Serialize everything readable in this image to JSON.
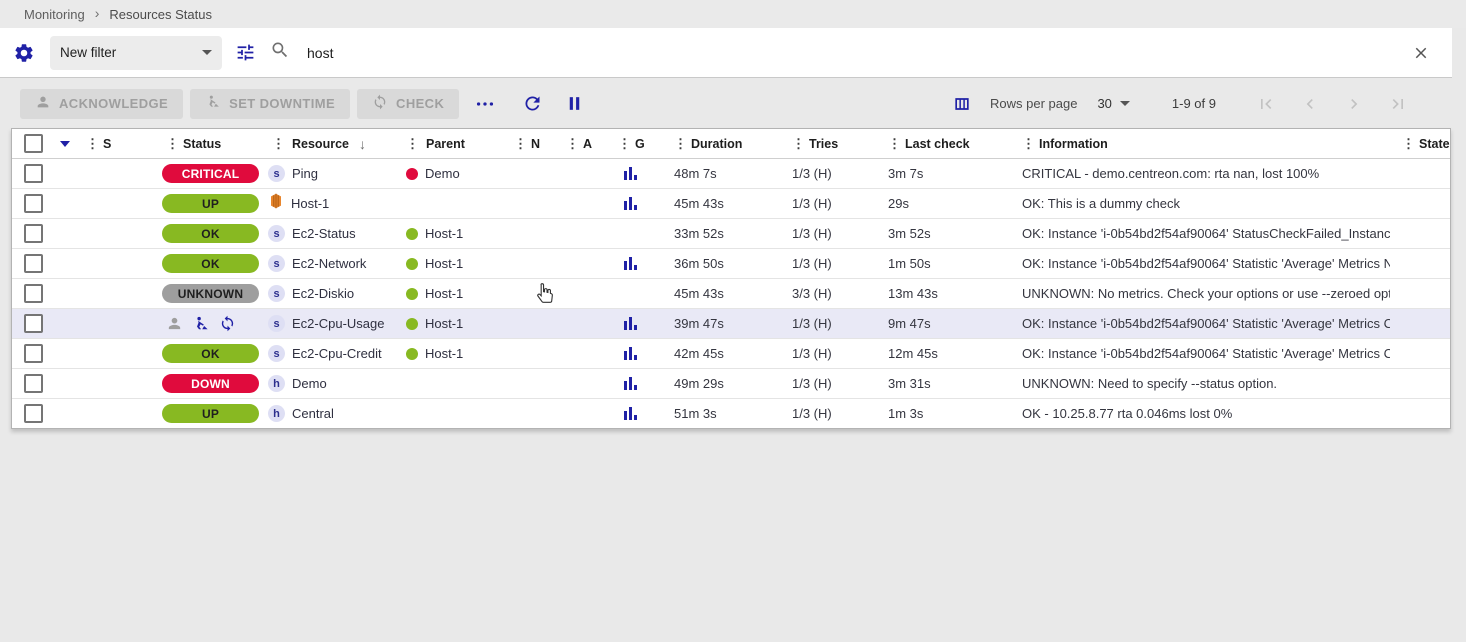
{
  "colors": {
    "primary": "#2021a6",
    "status_critical": "#e00b3d",
    "status_ok": "#88b922",
    "status_unknown": "#9e9e9e",
    "row_highlight": "#e9e9f6",
    "parent_red": "#e00b3d",
    "parent_green": "#88b922",
    "aws_orange": "#e8862d"
  },
  "breadcrumb": {
    "section": "Monitoring",
    "page": "Resources Status"
  },
  "filter": {
    "preset_label": "New filter",
    "search_value": "host"
  },
  "toolbar": {
    "acknowledge_label": "ACKNOWLEDGE",
    "set_downtime_label": "SET DOWNTIME",
    "check_label": "CHECK"
  },
  "pagination": {
    "rows_per_page_label": "Rows per page",
    "rows_per_page_value": "30",
    "range_label": "1-9 of 9"
  },
  "table": {
    "columns": [
      {
        "key": "s",
        "label": "S"
      },
      {
        "key": "status",
        "label": "Status"
      },
      {
        "key": "resource",
        "label": "Resource",
        "sorted": "desc"
      },
      {
        "key": "parent",
        "label": "Parent"
      },
      {
        "key": "n",
        "label": "N"
      },
      {
        "key": "a",
        "label": "A"
      },
      {
        "key": "g",
        "label": "G"
      },
      {
        "key": "duration",
        "label": "Duration"
      },
      {
        "key": "tries",
        "label": "Tries"
      },
      {
        "key": "last_check",
        "label": "Last check"
      },
      {
        "key": "information",
        "label": "Information"
      },
      {
        "key": "state",
        "label": "State"
      }
    ],
    "status_styles": {
      "CRITICAL": {
        "bg": "#e00b3d",
        "fg": "#ffffff"
      },
      "DOWN": {
        "bg": "#e00b3d",
        "fg": "#ffffff"
      },
      "UP": {
        "bg": "#88b922",
        "fg": "#1f1f1f"
      },
      "OK": {
        "bg": "#88b922",
        "fg": "#1f1f1f"
      },
      "UNKNOWN": {
        "bg": "#9e9e9e",
        "fg": "#1f1f1f"
      }
    },
    "rows": [
      {
        "status": "CRITICAL",
        "icon": "s",
        "resource": "Ping",
        "parent": {
          "name": "Demo",
          "color": "#e00b3d"
        },
        "graph": true,
        "duration": "48m 7s",
        "tries": "1/3 (H)",
        "last_check": "3m 7s",
        "information": "CRITICAL - demo.centreon.com: rta nan, lost 100%"
      },
      {
        "status": "UP",
        "icon": "aws",
        "resource": "Host-1",
        "parent": null,
        "graph": true,
        "duration": "45m 43s",
        "tries": "1/3 (H)",
        "last_check": "29s",
        "information": "OK: This is a dummy check"
      },
      {
        "status": "OK",
        "icon": "s",
        "resource": "Ec2-Status",
        "parent": {
          "name": "Host-1",
          "color": "#88b922"
        },
        "graph": false,
        "duration": "33m 52s",
        "tries": "1/3 (H)",
        "last_check": "3m 52s",
        "information": "OK: Instance 'i-0b54bd2f54af90064' StatusCheckFailed_Instanc…"
      },
      {
        "status": "OK",
        "icon": "s",
        "resource": "Ec2-Network",
        "parent": {
          "name": "Host-1",
          "color": "#88b922"
        },
        "graph": true,
        "duration": "36m 50s",
        "tries": "1/3 (H)",
        "last_check": "1m 50s",
        "information": "OK: Instance 'i-0b54bd2f54af90064' Statistic 'Average' Metrics N…"
      },
      {
        "status": "UNKNOWN",
        "icon": "s",
        "resource": "Ec2-Diskio",
        "parent": {
          "name": "Host-1",
          "color": "#88b922"
        },
        "graph": false,
        "duration": "45m 43s",
        "tries": "3/3 (H)",
        "last_check": "13m 43s",
        "information": "UNKNOWN: No metrics. Check your options or use --zeroed opti…"
      },
      {
        "status": null,
        "actions": [
          "acknowledge",
          "set-downtime",
          "check"
        ],
        "highlighted": true,
        "icon": "s",
        "resource": "Ec2-Cpu-Usage",
        "parent": {
          "name": "Host-1",
          "color": "#88b922"
        },
        "graph": true,
        "duration": "39m 47s",
        "tries": "1/3 (H)",
        "last_check": "9m 47s",
        "information": "OK: Instance 'i-0b54bd2f54af90064' Statistic 'Average' Metrics C…"
      },
      {
        "status": "OK",
        "icon": "s",
        "resource": "Ec2-Cpu-Credit",
        "parent": {
          "name": "Host-1",
          "color": "#88b922"
        },
        "graph": true,
        "duration": "42m 45s",
        "tries": "1/3 (H)",
        "last_check": "12m 45s",
        "information": "OK: Instance 'i-0b54bd2f54af90064' Statistic 'Average' Metrics C…"
      },
      {
        "status": "DOWN",
        "icon": "h",
        "resource": "Demo",
        "parent": null,
        "graph": true,
        "duration": "49m 29s",
        "tries": "1/3 (H)",
        "last_check": "3m 31s",
        "information": "UNKNOWN: Need to specify --status option."
      },
      {
        "status": "UP",
        "icon": "h",
        "resource": "Central",
        "parent": null,
        "graph": true,
        "duration": "51m 3s",
        "tries": "1/3 (H)",
        "last_check": "1m 3s",
        "information": "OK - 10.25.8.77 rta 0.046ms lost 0%"
      }
    ]
  }
}
